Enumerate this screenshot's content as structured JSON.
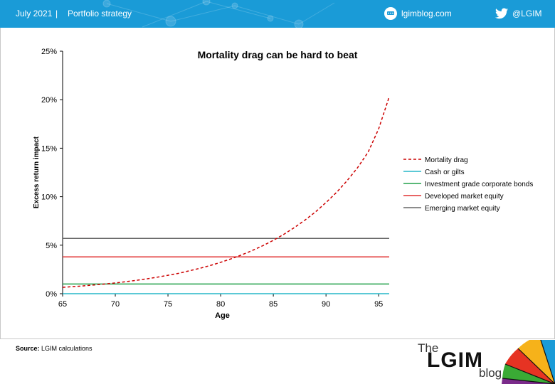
{
  "header": {
    "date": "July 2021",
    "separator": "|",
    "section": "Portfolio strategy",
    "site": "lgimblog.com",
    "twitter": "@LGIM"
  },
  "source": {
    "label": "Source:",
    "text": "LGIM calculations"
  },
  "logo": {
    "the": "The",
    "name": "LGIM",
    "blog": "blog"
  },
  "colors": {
    "banner": "#1a9bd7"
  },
  "chart_data": {
    "type": "line",
    "title": "Mortality drag can be hard to beat",
    "xlabel": "Age",
    "ylabel": "Excess return impact",
    "xlim": [
      65,
      96
    ],
    "ylim": [
      0,
      25
    ],
    "x_ticks": [
      65,
      70,
      75,
      80,
      85,
      90,
      95
    ],
    "y_ticks": [
      0,
      5,
      10,
      15,
      20,
      25
    ],
    "y_tick_labels": [
      "0%",
      "5%",
      "10%",
      "15%",
      "20%",
      "25%"
    ],
    "legend_position": "right",
    "grid": false,
    "series": [
      {
        "name": "Mortality drag",
        "color": "#cc0000",
        "dashed": true,
        "x": [
          65,
          66,
          67,
          68,
          69,
          70,
          71,
          72,
          73,
          74,
          75,
          76,
          77,
          78,
          79,
          80,
          81,
          82,
          83,
          84,
          85,
          86,
          87,
          88,
          89,
          90,
          91,
          92,
          93,
          94,
          95,
          96
        ],
        "y": [
          0.65,
          0.73,
          0.81,
          0.9,
          1.0,
          1.11,
          1.24,
          1.38,
          1.53,
          1.71,
          1.9,
          2.1,
          2.35,
          2.61,
          2.9,
          3.23,
          3.6,
          4.0,
          4.45,
          4.95,
          5.5,
          6.12,
          6.82,
          7.58,
          8.43,
          9.4,
          10.45,
          11.65,
          13.0,
          14.6,
          17.0,
          20.3
        ]
      },
      {
        "name": "Cash or gilts",
        "color": "#27b7c9",
        "dashed": false,
        "x": [
          65,
          96
        ],
        "y": [
          0.0,
          0.0
        ]
      },
      {
        "name": "Investment grade corporate bonds",
        "color": "#22a04a",
        "dashed": false,
        "x": [
          65,
          96
        ],
        "y": [
          1.0,
          1.0
        ]
      },
      {
        "name": "Developed market equity",
        "color": "#e03030",
        "dashed": false,
        "x": [
          65,
          96
        ],
        "y": [
          3.8,
          3.8
        ]
      },
      {
        "name": "Emerging market equity",
        "color": "#666666",
        "dashed": false,
        "x": [
          65,
          96
        ],
        "y": [
          5.7,
          5.7
        ]
      }
    ]
  }
}
